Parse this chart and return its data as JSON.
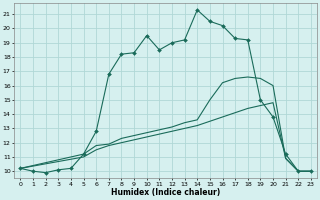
{
  "xlabel": "Humidex (Indice chaleur)",
  "background_color": "#d6f0ef",
  "grid_color": "#b0d8d6",
  "line_color": "#1a6b5a",
  "xlim": [
    -0.5,
    23.5
  ],
  "ylim": [
    9.5,
    21.8
  ],
  "xticks": [
    0,
    1,
    2,
    3,
    4,
    5,
    6,
    7,
    8,
    9,
    10,
    11,
    12,
    13,
    14,
    15,
    16,
    17,
    18,
    19,
    20,
    21,
    22,
    23
  ],
  "yticks": [
    10,
    11,
    12,
    13,
    14,
    15,
    16,
    17,
    18,
    19,
    20,
    21
  ],
  "curve1_x": [
    0,
    1,
    2,
    3,
    4,
    5,
    6,
    7,
    8,
    9,
    10,
    11,
    12,
    13,
    14,
    15,
    16,
    17,
    18,
    19,
    20,
    21,
    22,
    23
  ],
  "curve1_y": [
    10.2,
    10.0,
    9.9,
    10.1,
    10.2,
    11.2,
    12.8,
    16.8,
    18.2,
    18.3,
    19.5,
    18.5,
    19.0,
    19.2,
    21.3,
    20.5,
    20.2,
    19.3,
    19.2,
    15.0,
    13.8,
    11.2,
    10.0,
    10.0
  ],
  "curve2_x": [
    0,
    5,
    6,
    7,
    8,
    9,
    10,
    11,
    12,
    13,
    14,
    15,
    16,
    17,
    18,
    19,
    20,
    21,
    22,
    23
  ],
  "curve2_y": [
    10.2,
    11.2,
    11.8,
    11.9,
    12.3,
    12.5,
    12.7,
    12.9,
    13.1,
    13.4,
    13.6,
    15.0,
    16.2,
    16.5,
    16.6,
    16.5,
    16.0,
    10.9,
    10.0,
    10.0
  ],
  "curve3_x": [
    0,
    5,
    6,
    7,
    8,
    9,
    10,
    11,
    12,
    13,
    14,
    15,
    16,
    17,
    18,
    19,
    20,
    21,
    22,
    23
  ],
  "curve3_y": [
    10.2,
    11.0,
    11.5,
    11.8,
    12.0,
    12.2,
    12.4,
    12.6,
    12.8,
    13.0,
    13.2,
    13.5,
    13.8,
    14.1,
    14.4,
    14.6,
    14.8,
    10.9,
    10.0,
    10.0
  ]
}
